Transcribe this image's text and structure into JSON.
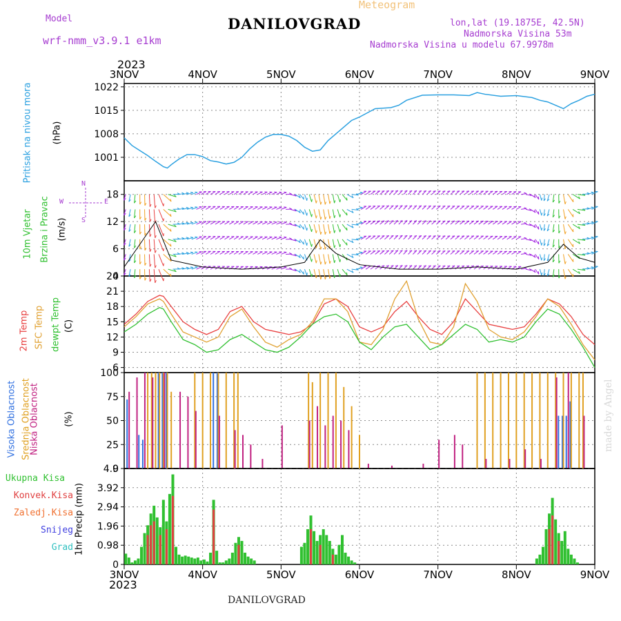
{
  "header": {
    "model_label": "Model",
    "model_name": "wrf-nmm_v3.9.1 e1km",
    "title": "DANILOVGRAD",
    "subtitle": "Meteogram",
    "coords": "lon,lat (19.1875E, 42.5N)",
    "elevation": "Nadmorska Visina 53m",
    "model_elevation": "Nadmorska Visina u modelu 67.9978m",
    "year": "2023"
  },
  "footer": {
    "station": "DANILOVGRAD",
    "year": "2023",
    "watermark": "made by Angel"
  },
  "compass": {
    "n": "N",
    "s": "S",
    "w": "W",
    "e": "E"
  },
  "colors": {
    "pressure": "#2aa0e0",
    "temp2m": "#e84040",
    "sfc": "#e0a030",
    "dewpt": "#30c030",
    "high_cloud": "#3070e0",
    "mid_cloud": "#e0a020",
    "low_cloud": "#c02080",
    "precip_total": "#30c030",
    "precip_conv": "#e04040",
    "purple": "#a63cd0"
  },
  "chart_data": [
    {
      "type": "line",
      "name": "pressure",
      "ylabel1": "Pritisak na nivou mora",
      "ylabel2": "(hPa)",
      "ylim": [
        994,
        1023
      ],
      "yticks": [
        1001,
        1008,
        1015,
        1022
      ],
      "x_days": [
        "3NOV",
        "4NOV",
        "5NOV",
        "6NOV",
        "7NOV",
        "8NOV",
        "9NOV"
      ],
      "x": [
        0,
        0.1,
        0.2,
        0.3,
        0.4,
        0.5,
        0.55,
        0.6,
        0.7,
        0.8,
        0.9,
        1.0,
        1.1,
        1.2,
        1.3,
        1.4,
        1.5,
        1.6,
        1.7,
        1.8,
        1.9,
        2.0,
        2.1,
        2.2,
        2.3,
        2.4,
        2.5,
        2.6,
        2.7,
        2.8,
        2.9,
        3.0,
        3.2,
        3.4,
        3.5,
        3.6,
        3.8,
        4.0,
        4.2,
        4.4,
        4.5,
        4.6,
        4.8,
        5.0,
        5.2,
        5.3,
        5.4,
        5.5,
        5.6,
        5.7,
        5.8,
        5.9,
        6.0
      ],
      "y": [
        1006.8,
        1004.5,
        1003.0,
        1001.5,
        999.8,
        998.2,
        997.8,
        998.8,
        1000.5,
        1001.8,
        1001.8,
        1001.2,
        1000.0,
        999.6,
        999.0,
        999.5,
        1001.0,
        1003.5,
        1005.5,
        1007.0,
        1007.8,
        1007.8,
        1007.3,
        1006.0,
        1004.0,
        1002.8,
        1003.2,
        1006.0,
        1008.0,
        1010.0,
        1012.0,
        1013.0,
        1015.5,
        1015.8,
        1016.5,
        1018.0,
        1019.5,
        1019.6,
        1019.6,
        1019.4,
        1020.3,
        1019.8,
        1019.2,
        1019.4,
        1018.8,
        1018.0,
        1017.5,
        1016.5,
        1015.5,
        1017.0,
        1018.0,
        1019.2,
        1019.8
      ]
    },
    {
      "type": "scatter",
      "name": "wind",
      "ylabel1": "10m Vjetar",
      "ylabel2": "Brzina i Pravac",
      "ylabel3": "(m/s)",
      "ylim": [
        0,
        21
      ],
      "yticks": [
        0,
        6,
        12,
        18
      ],
      "x": [
        0.0,
        0.2,
        0.4,
        0.6,
        1.0,
        1.5,
        2.0,
        2.3,
        2.5,
        2.7,
        3.0,
        3.5,
        4.0,
        4.5,
        5.0,
        5.4,
        5.6,
        5.8,
        6.0
      ],
      "speed": [
        2.0,
        7.0,
        12.0,
        3.5,
        2.0,
        1.5,
        2.0,
        3.0,
        8.0,
        5.0,
        2.5,
        1.5,
        1.5,
        2.0,
        1.5,
        3.0,
        7.0,
        4.0,
        3.0
      ],
      "direction_deg": [
        200,
        180,
        175,
        90,
        60,
        60,
        70,
        160,
        170,
        170,
        60,
        45,
        50,
        55,
        60,
        200,
        170,
        90,
        60
      ]
    },
    {
      "type": "line",
      "name": "temperature",
      "ylabel_t2m": "2m Temp",
      "ylabel_sfc": "SFC Temp",
      "ylabel_dew": "dewpt Temp",
      "ylabel_unit": "(C)",
      "ylim": [
        5,
        24
      ],
      "yticks": [
        6,
        9,
        12,
        15,
        18,
        21,
        24
      ],
      "x": [
        0,
        0.15,
        0.3,
        0.45,
        0.5,
        0.6,
        0.75,
        0.9,
        1.05,
        1.2,
        1.35,
        1.5,
        1.65,
        1.8,
        1.95,
        2.1,
        2.25,
        2.4,
        2.55,
        2.7,
        2.85,
        3.0,
        3.15,
        3.3,
        3.45,
        3.6,
        3.75,
        3.9,
        4.05,
        4.2,
        4.35,
        4.5,
        4.65,
        4.8,
        4.95,
        5.1,
        5.25,
        5.4,
        5.55,
        5.7,
        5.85,
        6.0
      ],
      "series": [
        {
          "name": "2m Temp",
          "y": [
            14.5,
            16.5,
            19.0,
            20.2,
            20.0,
            18.0,
            15.0,
            13.5,
            12.5,
            13.5,
            17.0,
            18.0,
            15.0,
            13.5,
            13.0,
            12.5,
            13.0,
            14.5,
            18.5,
            19.5,
            18.0,
            14.0,
            13.0,
            14.0,
            17.0,
            19.0,
            16.0,
            13.5,
            12.5,
            15.0,
            19.5,
            17.0,
            14.5,
            14.0,
            13.5,
            14.0,
            16.5,
            19.5,
            18.5,
            16.0,
            12.5,
            10.5
          ]
        },
        {
          "name": "SFC Temp",
          "y": [
            14.0,
            16.0,
            18.5,
            19.5,
            19.0,
            16.5,
            13.0,
            12.0,
            11.0,
            12.0,
            16.0,
            17.5,
            14.0,
            11.0,
            10.0,
            11.5,
            12.5,
            15.0,
            19.5,
            19.5,
            17.0,
            11.0,
            10.5,
            13.5,
            19.5,
            23.0,
            15.5,
            11.0,
            10.5,
            14.0,
            22.5,
            19.0,
            13.5,
            12.0,
            11.5,
            13.0,
            16.0,
            19.5,
            18.0,
            14.5,
            10.5,
            7.5
          ]
        },
        {
          "name": "dewpt Temp",
          "y": [
            13.0,
            14.5,
            16.5,
            17.8,
            17.5,
            15.0,
            11.5,
            10.5,
            9.0,
            9.5,
            11.5,
            12.5,
            11.0,
            9.5,
            9.0,
            10.0,
            12.0,
            14.5,
            16.0,
            16.5,
            15.0,
            11.0,
            9.5,
            12.0,
            14.0,
            14.5,
            12.0,
            9.5,
            10.5,
            12.5,
            14.5,
            13.5,
            11.0,
            11.5,
            11.0,
            12.0,
            15.0,
            17.5,
            16.5,
            13.5,
            10.0,
            6.0
          ]
        }
      ]
    },
    {
      "type": "bar",
      "name": "cloud_cover",
      "ylabel_high": "Visoka Oblacnost",
      "ylabel_mid": "Srednja Oblacnost",
      "ylabel_low": "Niska Oblacnost",
      "ylabel_unit": "(%)",
      "ylim": [
        0,
        100
      ],
      "yticks": [
        0,
        25,
        50,
        75,
        100
      ],
      "series": [
        {
          "name": "Visoka Oblacnost",
          "x": [
            0.05,
            0.2,
            0.25,
            0.45,
            0.5,
            0.55,
            1.15,
            1.2,
            5.55,
            5.6,
            5.65,
            5.7
          ],
          "values": [
            72,
            35,
            30,
            100,
            100,
            100,
            100,
            100,
            55,
            55,
            55,
            70
          ]
        },
        {
          "name": "Srednja Oblacnost",
          "x": [
            0.3,
            0.35,
            0.4,
            0.45,
            0.5,
            0.55,
            0.6,
            0.9,
            1.0,
            1.1,
            1.2,
            1.3,
            1.4,
            1.45,
            2.35,
            2.4,
            2.5,
            2.6,
            2.7,
            2.8,
            2.9,
            3.0,
            4.5,
            4.6,
            4.7,
            4.8,
            4.9,
            5.0,
            5.1,
            5.2,
            5.3,
            5.4,
            5.5,
            5.6,
            5.7,
            5.8,
            5.85
          ],
          "values": [
            100,
            100,
            100,
            100,
            100,
            100,
            80,
            100,
            100,
            100,
            100,
            100,
            100,
            100,
            100,
            90,
            100,
            100,
            100,
            85,
            65,
            35,
            100,
            100,
            100,
            100,
            100,
            100,
            100,
            100,
            100,
            100,
            100,
            100,
            100,
            100,
            100
          ]
        },
        {
          "name": "Niska Oblacnost",
          "x": [
            0.05,
            0.15,
            0.25,
            0.35,
            0.5,
            0.7,
            0.8,
            0.9,
            1.2,
            1.4,
            1.5,
            1.6,
            1.75,
            2.0,
            2.35,
            2.45,
            2.55,
            2.65,
            2.75,
            2.85,
            3.1,
            3.4,
            3.8,
            4.0,
            4.2,
            4.3,
            4.6,
            4.9,
            5.1,
            5.3,
            5.5,
            5.65,
            5.85
          ],
          "values": [
            80,
            95,
            100,
            95,
            100,
            80,
            75,
            60,
            55,
            40,
            35,
            25,
            10,
            45,
            50,
            65,
            45,
            55,
            50,
            40,
            5,
            3,
            5,
            30,
            35,
            25,
            10,
            10,
            20,
            10,
            95,
            100,
            55
          ]
        }
      ]
    },
    {
      "type": "bar",
      "name": "precipitation",
      "ylabel_total": "Ukupna Kisa",
      "ylabel_conv": "Konvek.Kisa",
      "ylabel_frozen": "Zaledj.Kisa",
      "ylabel_snow": "Snijeg",
      "ylabel_hail": "Grad",
      "ylabel_unit": "1hr Precip (mm)",
      "ylim": [
        0,
        4.9
      ],
      "yticks": [
        0,
        0.98,
        1.96,
        2.94,
        3.92,
        4.9
      ],
      "ytick_labels": [
        "0",
        "0.98",
        "1.96",
        "2.94",
        "3.92",
        "4.9"
      ],
      "series": [
        {
          "name": "Ukupna Kisa",
          "x": [
            0.02,
            0.06,
            0.1,
            0.14,
            0.18,
            0.22,
            0.26,
            0.3,
            0.34,
            0.38,
            0.42,
            0.46,
            0.5,
            0.54,
            0.58,
            0.62,
            0.66,
            0.7,
            0.74,
            0.78,
            0.82,
            0.86,
            0.9,
            0.94,
            0.98,
            1.02,
            1.06,
            1.1,
            1.14,
            1.18,
            1.22,
            1.26,
            1.3,
            1.34,
            1.38,
            1.42,
            1.46,
            1.5,
            1.54,
            1.58,
            1.62,
            1.66,
            2.26,
            2.3,
            2.34,
            2.38,
            2.42,
            2.46,
            2.5,
            2.54,
            2.58,
            2.62,
            2.66,
            2.7,
            2.74,
            2.78,
            2.82,
            2.86,
            2.9,
            2.94,
            5.26,
            5.3,
            5.34,
            5.38,
            5.42,
            5.46,
            5.5,
            5.54,
            5.58,
            5.62,
            5.66,
            5.7,
            5.74,
            5.78
          ],
          "values": [
            0.55,
            0.35,
            0.1,
            0.2,
            0.3,
            0.9,
            1.6,
            2.0,
            2.6,
            3.0,
            2.4,
            1.9,
            3.3,
            2.2,
            3.6,
            4.6,
            0.9,
            0.5,
            0.4,
            0.45,
            0.4,
            0.35,
            0.3,
            0.35,
            0.2,
            0.25,
            0.15,
            0.6,
            3.3,
            0.7,
            0.1,
            0.1,
            0.2,
            0.3,
            0.6,
            1.1,
            1.4,
            1.2,
            0.6,
            0.4,
            0.3,
            0.2,
            0.9,
            1.1,
            1.8,
            2.5,
            1.7,
            1.2,
            1.5,
            1.8,
            1.5,
            1.2,
            0.8,
            0.5,
            1.0,
            1.5,
            0.6,
            0.4,
            0.2,
            0.1,
            0.3,
            0.5,
            0.9,
            1.8,
            2.6,
            3.4,
            2.3,
            1.6,
            1.2,
            1.7,
            0.8,
            0.5,
            0.3,
            0.1
          ]
        },
        {
          "name": "Konvek.Kisa",
          "x": [
            0.3,
            0.34,
            0.38,
            0.46,
            0.54,
            0.62,
            1.14,
            1.46,
            2.38,
            2.5,
            2.66,
            5.42,
            5.46,
            5.54
          ],
          "values": [
            1.5,
            2.0,
            2.2,
            1.5,
            1.8,
            3.5,
            2.8,
            1.0,
            1.8,
            1.0,
            0.5,
            1.8,
            2.5,
            1.2
          ]
        }
      ]
    }
  ]
}
